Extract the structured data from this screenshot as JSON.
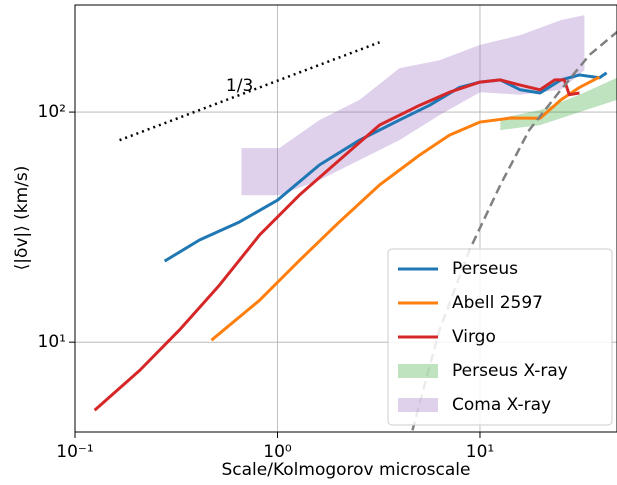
{
  "chart_data": {
    "type": "line",
    "xlabel": "Scale/Kolmogorov microscale",
    "ylabel": "⟨|δv|⟩ (km/s)",
    "xscale": "log",
    "yscale": "log",
    "grid": true,
    "legend": "lower right",
    "xlim": [
      0.1,
      47.5
    ],
    "ylim": [
      4.07,
      292
    ],
    "xticks": [
      {
        "value": 0.1,
        "label": "10⁻¹"
      },
      {
        "value": 1,
        "label": "10⁰"
      },
      {
        "value": 10,
        "label": "10¹"
      }
    ],
    "yticks": [
      {
        "value": 10,
        "label": "10¹"
      },
      {
        "value": 100,
        "label": "10²"
      }
    ],
    "annotations": [
      {
        "text": "1/3",
        "x": 0.65,
        "y": 130
      }
    ],
    "series": [
      {
        "name": "Perseus",
        "kind": "line",
        "color": "#1f77b4",
        "x": [
          0.277,
          0.412,
          0.649,
          1,
          1.61,
          2.54,
          4.0,
          5.63,
          7.92,
          10,
          12.6,
          15.8,
          19.8,
          25.1,
          31.0,
          38.9,
          42.2
        ],
        "values": [
          22.5,
          27.8,
          33.3,
          41.4,
          58.9,
          75.5,
          92.3,
          107,
          128,
          135,
          138,
          125,
          121,
          138,
          145,
          141,
          148
        ]
      },
      {
        "name": "Abell 2597",
        "kind": "line",
        "color": "#ff7f0e",
        "x": [
          0.472,
          0.815,
          1.28,
          2.02,
          3.19,
          5.03,
          7.07,
          10,
          14.1,
          19.8,
          25.1,
          31.0,
          38.9
        ],
        "values": [
          10.2,
          15.2,
          22.6,
          33.3,
          48.2,
          65.0,
          79.4,
          90.5,
          94.2,
          94,
          113,
          128,
          142
        ]
      },
      {
        "name": "Virgo",
        "kind": "line",
        "color": "#d62728",
        "x": [
          0.125,
          0.209,
          0.328,
          0.517,
          0.815,
          1.28,
          2.02,
          3.19,
          5.03,
          7.07,
          10,
          12.6,
          15.8,
          19.8,
          23.4,
          26.1,
          27.6,
          31.0
        ],
        "values": [
          5.06,
          7.55,
          11.3,
          17.7,
          29.2,
          43.5,
          61.8,
          87.8,
          107,
          122,
          135,
          138,
          131,
          125,
          138,
          138,
          119,
          121
        ]
      },
      {
        "name": "Perseus X-ray",
        "kind": "band",
        "color": "#2ca02c",
        "x": [
          12.6,
          19.8,
          31.0,
          47.5
        ],
        "values": [
          94,
          102,
          119,
          141
        ],
        "lower": [
          83.5,
          87.8,
          100,
          113
        ]
      },
      {
        "name": "Coma X-ray",
        "kind": "band",
        "color": "#9467bd",
        "x": [
          0.664,
          1.02,
          1.61,
          2.54,
          4.0,
          6.31,
          10,
          15.8,
          25.1,
          32.8
        ],
        "values": [
          69.7,
          69.7,
          92.3,
          113,
          155,
          168,
          196,
          216,
          251,
          264
        ],
        "lower": [
          43.5,
          43.5,
          50.6,
          61.8,
          75.5,
          97,
          122,
          119,
          125,
          152
        ]
      },
      {
        "kind": "line",
        "color": "#808080",
        "style": "dashed",
        "x": [
          4.64,
          6.31,
          8.87,
          12.6,
          17.5,
          25.1,
          34.7,
          47.5
        ],
        "values": [
          4.14,
          11.3,
          25.1,
          48.2,
          83.5,
          125,
          177,
          223
        ]
      },
      {
        "kind": "line",
        "color": "#000000",
        "style": "dotted",
        "x": [
          0.166,
          3.19
        ],
        "values": [
          75.5,
          201
        ]
      }
    ]
  }
}
